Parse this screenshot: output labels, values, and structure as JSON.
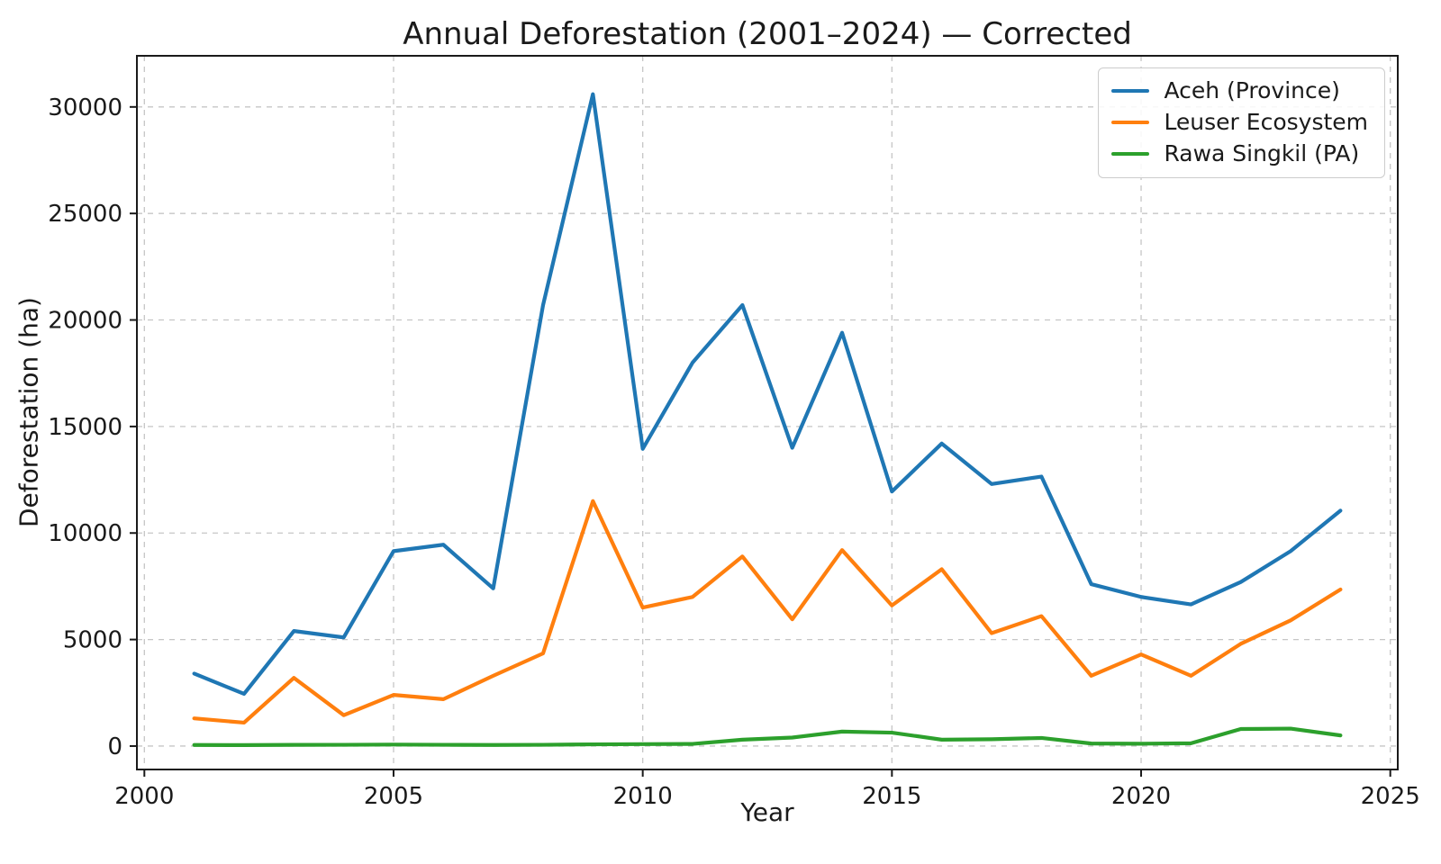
{
  "chart_data": {
    "type": "line",
    "title": "Annual Deforestation (2001–2024) — Corrected",
    "xlabel": "Year",
    "ylabel": "Deforestation (ha)",
    "x": [
      2001,
      2002,
      2003,
      2004,
      2005,
      2006,
      2007,
      2008,
      2009,
      2010,
      2011,
      2012,
      2013,
      2014,
      2015,
      2016,
      2017,
      2018,
      2019,
      2020,
      2021,
      2022,
      2023,
      2024
    ],
    "series": [
      {
        "id": "aceh-province",
        "name": "Aceh (Province)",
        "color": "#1f77b4",
        "values": [
          3400,
          2450,
          5400,
          5100,
          9150,
          9450,
          7400,
          20700,
          30600,
          13950,
          18000,
          20700,
          14000,
          19400,
          11950,
          14200,
          12300,
          12650,
          7600,
          7000,
          6650,
          7700,
          9150,
          11050
        ]
      },
      {
        "id": "leuser-ecosystem",
        "name": "Leuser Ecosystem",
        "color": "#ff7f0e",
        "values": [
          1300,
          1100,
          3200,
          1450,
          2400,
          2200,
          3300,
          4350,
          11500,
          6500,
          7000,
          8900,
          5950,
          9200,
          6600,
          8300,
          5300,
          6100,
          3300,
          4300,
          3300,
          4800,
          5900,
          7350
        ]
      },
      {
        "id": "rawa-singkil-pa",
        "name": "Rawa Singkil (PA)",
        "color": "#2ca02c",
        "values": [
          50,
          45,
          55,
          60,
          70,
          60,
          50,
          60,
          80,
          90,
          100,
          300,
          400,
          680,
          630,
          300,
          320,
          380,
          120,
          110,
          130,
          800,
          820,
          500
        ]
      }
    ],
    "xlim": [
      1999.85,
      2025.15
    ],
    "ylim": [
      -1100,
      32400
    ],
    "xticks": [
      2000,
      2005,
      2010,
      2015,
      2020,
      2025
    ],
    "yticks": [
      0,
      5000,
      10000,
      15000,
      20000,
      25000,
      30000
    ],
    "grid": true,
    "grid_style": {
      "color": "#c6c6c6",
      "dash": "6 6"
    },
    "legend_location": "upper right",
    "axis_color": "#1a1a1a",
    "background": "#ffffff"
  }
}
